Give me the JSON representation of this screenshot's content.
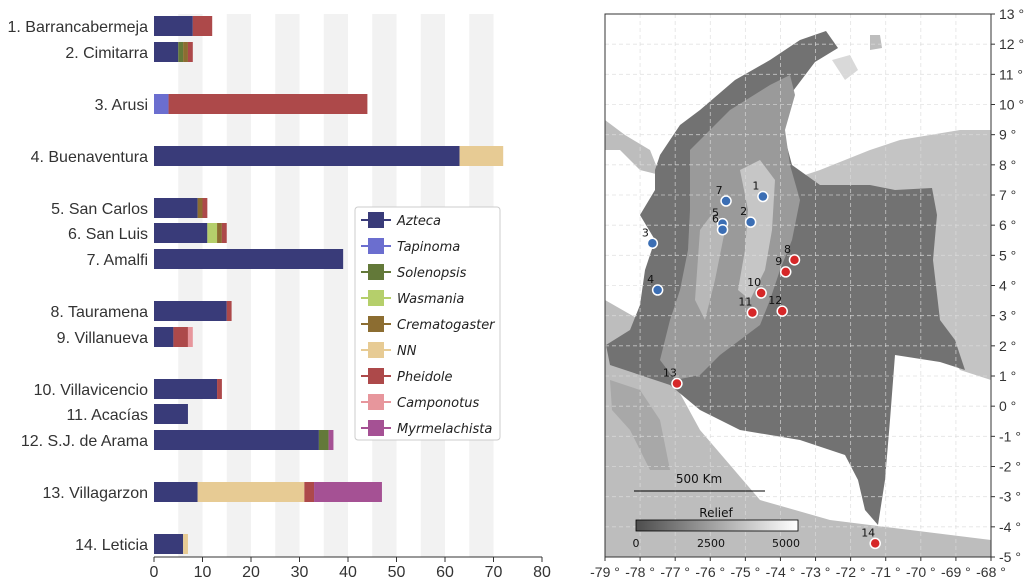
{
  "chart_data": [
    {
      "type": "bar",
      "orientation": "horizontal",
      "stacked": true,
      "categories": [
        "1. Barrancabermeja",
        "2. Cimitarra",
        "3. Arusi",
        "4. Buenaventura",
        "5. San Carlos",
        "6. San Luis",
        "7. Amalfi",
        "8. Tauramena",
        "9. Villanueva",
        "10. Villavicencio",
        "11. Acacías",
        "12. S.J. de Arama",
        "13. Villagarzon",
        "14. Leticia"
      ],
      "series": [
        {
          "name": "Azteca",
          "color": "#393b79",
          "values": [
            8,
            5,
            0,
            63,
            9,
            11,
            39,
            15,
            4,
            13,
            7,
            34,
            9,
            6
          ]
        },
        {
          "name": "Tapinoma",
          "color": "#6b6ecf",
          "values": [
            0,
            0,
            3,
            0,
            0,
            0,
            0,
            0,
            0,
            0,
            0,
            0,
            0,
            0
          ]
        },
        {
          "name": "Solenopsis",
          "color": "#637939",
          "values": [
            0,
            1,
            0,
            0,
            0,
            0,
            0,
            0,
            0,
            0,
            0,
            2,
            0,
            0
          ]
        },
        {
          "name": "Wasmania",
          "color": "#b5cf6b",
          "values": [
            0,
            0,
            0,
            0,
            0,
            2,
            0,
            0,
            0,
            0,
            0,
            0,
            0,
            0
          ]
        },
        {
          "name": "Crematogaster",
          "color": "#8c6d31",
          "values": [
            0,
            1,
            0,
            0,
            1,
            1,
            0,
            0,
            0,
            0,
            0,
            0,
            0,
            0
          ]
        },
        {
          "name": "NN",
          "color": "#e7cb94",
          "values": [
            0,
            0,
            0,
            9,
            0,
            0,
            0,
            0,
            0,
            0,
            0,
            0,
            22,
            1
          ]
        },
        {
          "name": "Pheidole",
          "color": "#ad494a",
          "values": [
            4,
            1,
            41,
            0,
            1,
            1,
            0,
            1,
            3,
            1,
            0,
            0,
            2,
            0
          ]
        },
        {
          "name": "Camponotus",
          "color": "#e7969c",
          "values": [
            0,
            0,
            0,
            0,
            0,
            0,
            0,
            0,
            1,
            0,
            0,
            0,
            0,
            0
          ]
        },
        {
          "name": "Myrmelachista",
          "color": "#a55194",
          "values": [
            0,
            0,
            0,
            0,
            0,
            0,
            0,
            0,
            0,
            0,
            0,
            1,
            14,
            0
          ]
        }
      ],
      "xlim": [
        0,
        80
      ],
      "xticks": [
        "0",
        "10",
        "20",
        "30",
        "40",
        "50",
        "60",
        "70",
        "80"
      ],
      "xlabel": "",
      "ylabel": "",
      "legend_position": "center-right"
    },
    {
      "type": "map",
      "xticks": [
        "-79 °",
        "-78 °",
        "-77 °",
        "-76 °",
        "-75 °",
        "-74 °",
        "-73 °",
        "-72 °",
        "-71 °",
        "-70 °",
        "-69 °",
        "-68 °"
      ],
      "yticks": [
        "13 °",
        "12 °",
        "11 °",
        "10 °",
        "9 °",
        "8 °",
        "7 °",
        "6 °",
        "5 °",
        "4 °",
        "3 °",
        "2 °",
        "1 °",
        "0 °",
        "-1 °",
        "-2 °",
        "-3 °",
        "-4 °",
        "-5 °"
      ],
      "lon_range": [
        -79,
        -68
      ],
      "lat_range": [
        -5,
        13
      ],
      "scale_bar_label": "500 Km",
      "relief_title": "Relief",
      "relief_ticks": [
        "0",
        "2500",
        "5000"
      ],
      "sites": [
        {
          "label": "1",
          "lon": -74.5,
          "lat": 6.95,
          "color": "#3b6eb4"
        },
        {
          "label": "2",
          "lon": -74.85,
          "lat": 6.1,
          "color": "#3b6eb4"
        },
        {
          "label": "3",
          "lon": -77.65,
          "lat": 5.4,
          "color": "#3b6eb4"
        },
        {
          "label": "4",
          "lon": -77.5,
          "lat": 3.85,
          "color": "#3b6eb4"
        },
        {
          "label": "5",
          "lon": -75.65,
          "lat": 6.05,
          "color": "#3b6eb4"
        },
        {
          "label": "6",
          "lon": -75.65,
          "lat": 5.85,
          "color": "#3b6eb4"
        },
        {
          "label": "7",
          "lon": -75.55,
          "lat": 6.8,
          "color": "#3b6eb4"
        },
        {
          "label": "8",
          "lon": -73.6,
          "lat": 4.85,
          "color": "#d62728"
        },
        {
          "label": "9",
          "lon": -73.85,
          "lat": 4.45,
          "color": "#d62728"
        },
        {
          "label": "10",
          "lon": -74.55,
          "lat": 3.75,
          "color": "#d62728"
        },
        {
          "label": "11",
          "lon": -74.8,
          "lat": 3.1,
          "color": "#d62728"
        },
        {
          "label": "12",
          "lon": -73.95,
          "lat": 3.15,
          "color": "#d62728"
        },
        {
          "label": "13",
          "lon": -76.95,
          "lat": 0.75,
          "color": "#d62728"
        },
        {
          "label": "14",
          "lon": -71.3,
          "lat": -4.55,
          "color": "#d62728"
        }
      ]
    }
  ]
}
